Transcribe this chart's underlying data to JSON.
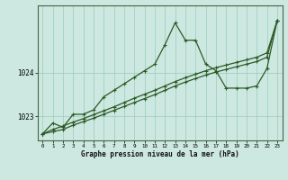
{
  "title": "Graphe pression niveau de la mer (hPa)",
  "background_color": "#cce8e0",
  "grid_color": "#99ccbb",
  "line_color": "#2d5a27",
  "x_labels": [
    "0",
    "1",
    "2",
    "3",
    "4",
    "5",
    "6",
    "7",
    "8",
    "9",
    "10",
    "11",
    "12",
    "13",
    "14",
    "15",
    "16",
    "17",
    "18",
    "19",
    "20",
    "21",
    "22",
    "23"
  ],
  "ylim": [
    1022.45,
    1025.55
  ],
  "yticks": [
    1023,
    1024
  ],
  "main_series": [
    1022.6,
    1022.85,
    1022.75,
    1023.05,
    1023.05,
    1023.15,
    1023.45,
    1023.6,
    1023.75,
    1023.9,
    1024.05,
    1024.2,
    1024.65,
    1025.15,
    1024.75,
    1024.75,
    1024.2,
    1024.05,
    1023.65,
    1023.65,
    1023.65,
    1023.7,
    1024.1,
    1025.2
  ],
  "ref1_series": [
    1022.6,
    1022.65,
    1022.7,
    1022.8,
    1022.88,
    1022.96,
    1023.05,
    1023.14,
    1023.23,
    1023.32,
    1023.41,
    1023.5,
    1023.6,
    1023.7,
    1023.79,
    1023.87,
    1023.95,
    1024.02,
    1024.08,
    1024.14,
    1024.2,
    1024.26,
    1024.36,
    1025.2
  ],
  "ref2_series": [
    1022.6,
    1022.7,
    1022.78,
    1022.87,
    1022.95,
    1023.04,
    1023.13,
    1023.22,
    1023.32,
    1023.42,
    1023.51,
    1023.6,
    1023.7,
    1023.8,
    1023.89,
    1023.97,
    1024.05,
    1024.12,
    1024.18,
    1024.24,
    1024.3,
    1024.36,
    1024.46,
    1025.2
  ]
}
